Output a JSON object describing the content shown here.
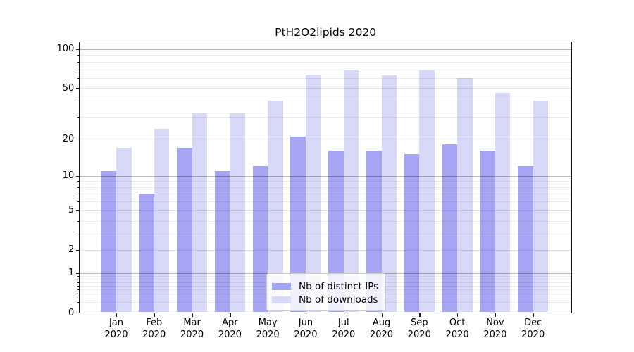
{
  "title": "PtH2O2lipids 2020",
  "colors": {
    "series_ips": "#a5a5f3",
    "series_downloads": "#d8d8f8",
    "grid_major": "rgba(0,0,0,0.28)",
    "grid_mid": "rgba(0,0,0,0.11)",
    "grid_minor": "rgba(0,0,0,0.07)",
    "axis": "#1a1a1a",
    "background": "#ffffff",
    "legend_border": "#cccccc"
  },
  "chart_data": {
    "type": "bar",
    "title": "PtH2O2lipids 2020",
    "categories": [
      "Jan",
      "Feb",
      "Mar",
      "Apr",
      "May",
      "Jun",
      "Jul",
      "Aug",
      "Sep",
      "Oct",
      "Nov",
      "Dec"
    ],
    "category_year": "2020",
    "series": [
      {
        "name": "Nb of distinct IPs",
        "color": "#a5a5f3",
        "values": [
          11,
          7,
          17,
          11,
          12,
          21,
          16,
          16,
          15,
          18,
          16,
          12
        ]
      },
      {
        "name": "Nb of downloads",
        "color": "#d8d8f8",
        "values": [
          17,
          24,
          32,
          32,
          40,
          64,
          70,
          63,
          69,
          60,
          46,
          40
        ]
      }
    ],
    "yscale": "log1p",
    "ylim": [
      0,
      110
    ],
    "y_ticks_labeled": [
      0,
      1,
      2,
      5,
      10,
      20,
      50,
      100
    ],
    "y_gridlines_major": [
      1,
      10,
      100
    ],
    "y_gridlines_mid": [
      2,
      5,
      20,
      50
    ],
    "y_gridlines_minor": [
      0.2,
      0.3,
      0.4,
      0.5,
      0.6,
      0.7,
      0.8,
      0.9,
      3,
      4,
      6,
      7,
      8,
      9,
      30,
      40,
      60,
      70,
      80,
      90
    ],
    "grid": "both",
    "legend_position": "lower center",
    "xlabel": "",
    "ylabel": ""
  }
}
